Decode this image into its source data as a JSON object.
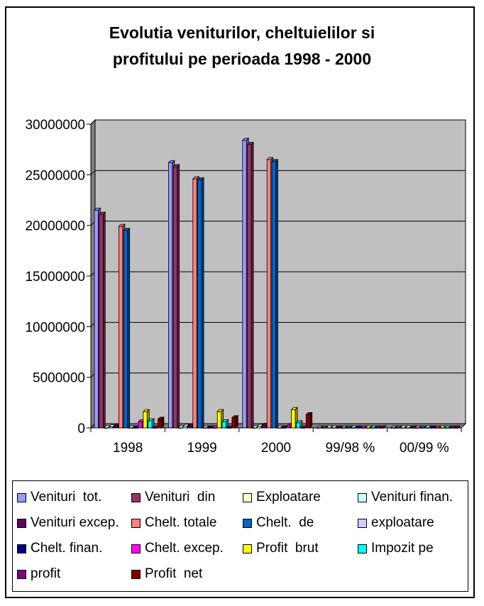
{
  "chart_data": {
    "type": "bar",
    "title": [
      "Evolutia veniturilor, cheltuielilor si",
      "profitului pe perioada 1998 - 2000"
    ],
    "categories": [
      "1998",
      "1999",
      "2000",
      "99/98 %",
      "00/99 %"
    ],
    "yticks": [
      "0",
      "5000000",
      "10000000",
      "15000000",
      "20000000",
      "25000000",
      "30000000"
    ],
    "ylim": [
      0,
      30000000
    ],
    "grid": true,
    "legend_position": "bottom",
    "series": [
      {
        "name": "Venituri  tot.",
        "color": "#9999ff",
        "values": [
          21500000,
          26200000,
          28400000,
          0,
          0
        ]
      },
      {
        "name": "Venituri  din",
        "color": "#993366",
        "values": [
          21100000,
          25800000,
          28000000,
          0,
          0
        ]
      },
      {
        "name": "Exploatare",
        "color": "#ffffcc",
        "values": [
          0,
          0,
          0,
          0,
          0
        ]
      },
      {
        "name": "Venituri finan.",
        "color": "#ccffff",
        "values": [
          100000,
          150000,
          150000,
          0,
          0
        ]
      },
      {
        "name": "Venituri excep.",
        "color": "#660066",
        "values": [
          200000,
          200000,
          250000,
          0,
          0
        ]
      },
      {
        "name": "Chelt. totale",
        "color": "#ff8080",
        "values": [
          19900000,
          24600000,
          26500000,
          0,
          0
        ]
      },
      {
        "name": "Chelt.  de",
        "color": "#0066cc",
        "values": [
          19500000,
          24500000,
          26300000,
          0,
          0
        ]
      },
      {
        "name": "exploatare",
        "color": "#ccccff",
        "values": [
          0,
          0,
          0,
          0,
          0
        ]
      },
      {
        "name": "Chelt. finan.",
        "color": "#000080",
        "values": [
          0,
          0,
          0,
          0,
          0
        ]
      },
      {
        "name": "Chelt. excep.",
        "color": "#ff00ff",
        "values": [
          600000,
          0,
          150000,
          0,
          0
        ]
      },
      {
        "name": "Profit  brut",
        "color": "#ffff00",
        "values": [
          1600000,
          1600000,
          1800000,
          0,
          0
        ]
      },
      {
        "name": "Impozit pe",
        "color": "#00ffff",
        "values": [
          700000,
          600000,
          500000,
          0,
          0
        ]
      },
      {
        "name": "profit",
        "color": "#800080",
        "values": [
          0,
          0,
          0,
          0,
          0
        ]
      },
      {
        "name": "Profit  net",
        "color": "#800000",
        "values": [
          850000,
          1000000,
          1300000,
          0,
          0
        ]
      }
    ]
  },
  "colors": {
    "plot_wall": "#c0c0c0",
    "plot_side": "#808080",
    "gridline": "#000000",
    "background": "#ffffff"
  }
}
